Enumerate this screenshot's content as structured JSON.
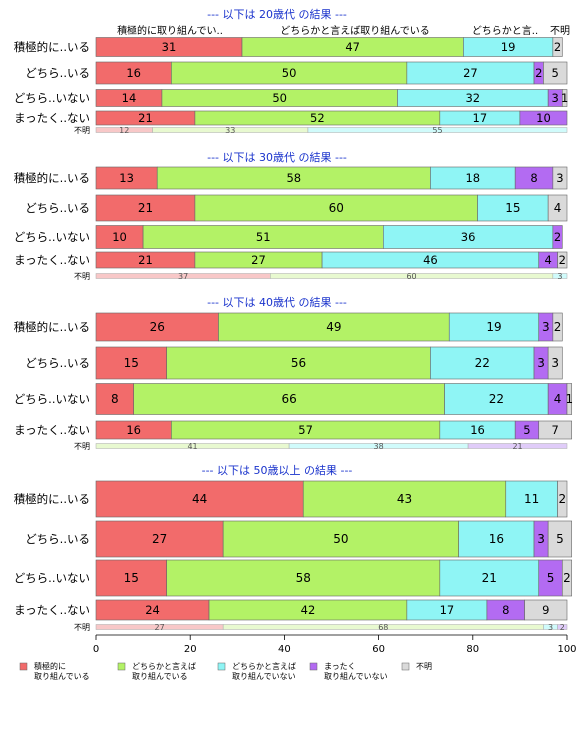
{
  "chart_data": {
    "type": "bar",
    "orientation": "horizontal",
    "stacked": true,
    "percent": true,
    "xlim": [
      0,
      100
    ],
    "x_ticks": [
      "0",
      "20",
      "40",
      "60",
      "80",
      "100"
    ],
    "top_header_labels": [
      "積極的に取り組んでい..",
      "どちらかと言えば取り組んでいる",
      "どちらかと言..",
      "不明"
    ],
    "categories": [
      "積極的に..いる",
      "どちら..いる",
      "どちら..いない",
      "まったく..ない"
    ],
    "unknown_label": "不明",
    "legend": {
      "position": "bottom",
      "items": [
        {
          "name": "積極的に\n取り組んでいる",
          "color": "#F26B6B"
        },
        {
          "name": "どちらかと言えば\n取り組んでいる",
          "color": "#B3F266"
        },
        {
          "name": "どちらかと言えば\n取り組んでいない",
          "color": "#8FF5F5"
        },
        {
          "name": "まったく\n取り組んでいない",
          "color": "#B36BF2"
        },
        {
          "name": "不明",
          "color": "#DADADA"
        }
      ]
    },
    "panels": [
      {
        "title": "--- 以下は 20歳代 の結果 ---",
        "rows": [
          [
            31,
            47,
            19,
            0,
            2
          ],
          [
            16,
            50,
            27,
            2,
            5
          ],
          [
            14,
            50,
            32,
            3,
            1
          ],
          [
            21,
            52,
            17,
            10,
            0
          ]
        ],
        "unknown_row": [
          12,
          33,
          55
        ]
      },
      {
        "title": "--- 以下は 30歳代 の結果 ---",
        "rows": [
          [
            13,
            58,
            18,
            8,
            3
          ],
          [
            21,
            60,
            15,
            0,
            4
          ],
          [
            10,
            51,
            36,
            2,
            0
          ],
          [
            21,
            27,
            46,
            4,
            2
          ]
        ],
        "unknown_row": [
          37,
          60,
          3
        ]
      },
      {
        "title": "--- 以下は 40歳代 の結果 ---",
        "rows": [
          [
            26,
            49,
            19,
            3,
            2
          ],
          [
            15,
            56,
            22,
            3,
            3
          ],
          [
            8,
            66,
            22,
            4,
            1
          ],
          [
            16,
            57,
            16,
            5,
            7
          ]
        ],
        "unknown_row": [
          0,
          41,
          38,
          21
        ]
      },
      {
        "title": "--- 以下は 50歳以上 の結果 ---",
        "rows": [
          [
            44,
            43,
            11,
            0,
            2
          ],
          [
            27,
            50,
            16,
            3,
            5
          ],
          [
            15,
            58,
            21,
            5,
            2
          ],
          [
            24,
            42,
            17,
            8,
            9
          ]
        ],
        "unknown_row": [
          27,
          68,
          3,
          2
        ]
      }
    ]
  }
}
